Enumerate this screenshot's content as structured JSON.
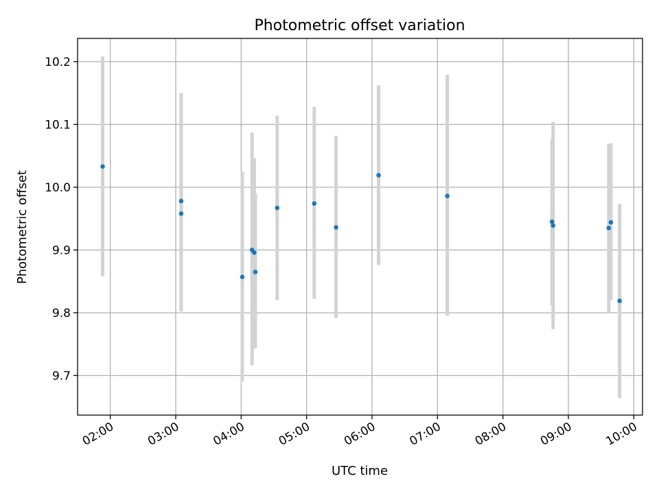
{
  "chart_data": {
    "type": "scatter",
    "title": "Photometric offset variation",
    "xlabel": "UTC time",
    "ylabel": "Photometric offset",
    "x_tick_labels": [
      "02:00",
      "03:00",
      "04:00",
      "05:00",
      "06:00",
      "07:00",
      "08:00",
      "09:00",
      "10:00"
    ],
    "x_tick_hours": [
      2,
      3,
      4,
      5,
      6,
      7,
      8,
      9,
      10
    ],
    "y_tick_labels": [
      "9.7",
      "9.8",
      "9.9",
      "10.0",
      "10.1",
      "10.2"
    ],
    "y_ticks": [
      9.7,
      9.8,
      9.9,
      10.0,
      10.1,
      10.2
    ],
    "xlim": [
      "01:30",
      "10:08"
    ],
    "ylim": [
      9.637,
      10.237
    ],
    "grid": true,
    "colors": {
      "points": "#1f77b4",
      "error_bars": "#d3d3d3",
      "grid": "#b0b0b0"
    },
    "points": [
      {
        "time": "01:53",
        "value": 10.033,
        "lower": 9.858,
        "upper": 10.208
      },
      {
        "time": "03:05",
        "value": 9.958,
        "lower": 9.802,
        "upper": 10.148
      },
      {
        "time": "03:05",
        "value": 9.978,
        "lower": 9.806,
        "upper": 10.15
      },
      {
        "time": "04:01",
        "value": 9.857,
        "lower": 9.69,
        "upper": 10.025
      },
      {
        "time": "04:10",
        "value": 9.9,
        "lower": 9.716,
        "upper": 10.087
      },
      {
        "time": "04:12",
        "value": 9.896,
        "lower": 9.743,
        "upper": 10.046
      },
      {
        "time": "04:13",
        "value": 9.865,
        "lower": 9.744,
        "upper": 9.99
      },
      {
        "time": "04:33",
        "value": 9.967,
        "lower": 9.82,
        "upper": 10.114
      },
      {
        "time": "05:07",
        "value": 9.974,
        "lower": 9.822,
        "upper": 10.128
      },
      {
        "time": "05:27",
        "value": 9.936,
        "lower": 9.792,
        "upper": 10.082
      },
      {
        "time": "06:06",
        "value": 10.019,
        "lower": 9.876,
        "upper": 10.162
      },
      {
        "time": "07:09",
        "value": 9.986,
        "lower": 9.795,
        "upper": 10.179
      },
      {
        "time": "08:45",
        "value": 9.945,
        "lower": 9.812,
        "upper": 10.076
      },
      {
        "time": "08:46",
        "value": 9.939,
        "lower": 9.774,
        "upper": 10.104
      },
      {
        "time": "09:37",
        "value": 9.935,
        "lower": 9.8,
        "upper": 10.069
      },
      {
        "time": "09:39",
        "value": 9.944,
        "lower": 9.82,
        "upper": 10.07
      },
      {
        "time": "09:47",
        "value": 9.819,
        "lower": 9.664,
        "upper": 9.973
      }
    ]
  }
}
